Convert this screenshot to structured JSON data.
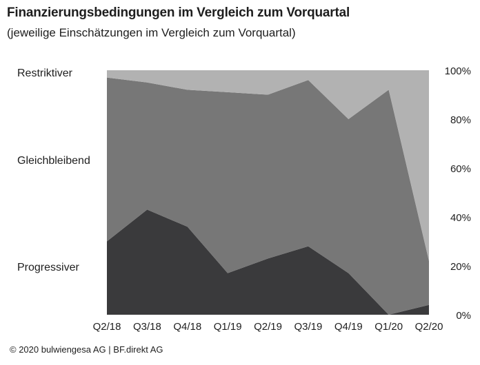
{
  "title": "Finanzierungsbedingungen im Vergleich zum Vorquartal",
  "subtitle": "(jeweilige Einschätzungen im Vergleich zum Vorquartal)",
  "footer": "© 2020 bulwiengesa AG | BF.direkt AG",
  "chart_data": {
    "type": "area",
    "stacked": true,
    "categories": [
      "Q2/18",
      "Q3/18",
      "Q4/18",
      "Q1/19",
      "Q2/19",
      "Q3/19",
      "Q4/19",
      "Q1/20",
      "Q2/20"
    ],
    "series": [
      {
        "name": "Progressiver",
        "color": "#3a3a3c",
        "values": [
          30,
          43,
          36,
          17,
          23,
          28,
          17,
          0,
          4
        ]
      },
      {
        "name": "Gleichbleibend",
        "color": "#777777",
        "values": [
          67,
          52,
          56,
          74,
          67,
          68,
          63,
          92,
          18
        ]
      },
      {
        "name": "Restriktiver",
        "color": "#b2b2b2",
        "values": [
          3,
          5,
          8,
          9,
          10,
          4,
          20,
          8,
          78
        ]
      }
    ],
    "y_tick_labels": [
      "0%",
      "20%",
      "40%",
      "60%",
      "80%",
      "100%"
    ],
    "ylim": [
      0,
      100
    ],
    "yaxis_position": "right",
    "grid": false
  }
}
